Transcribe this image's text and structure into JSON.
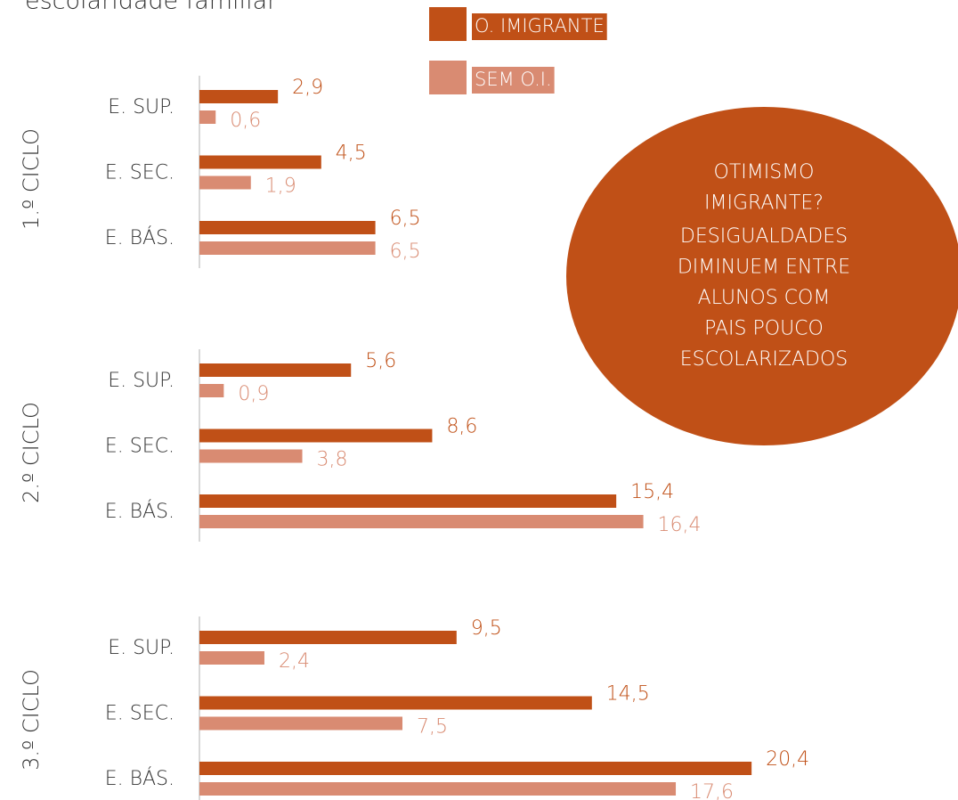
{
  "title": "escolaridade familiar",
  "annotation": {
    "lines": [
      "OTIMISMO",
      "IMIGRANTE?",
      "DESIGUALDADES",
      "DIMINUEM ENTRE",
      "ALUNOS COM",
      "PAIS POUCO",
      "ESCOLARIZADOS"
    ]
  },
  "chart_data": [
    {
      "type": "bar",
      "title": "1.º CICLO",
      "categories": [
        "E. SUP.",
        "E. SEC.",
        "E. BÁS."
      ],
      "series": [
        {
          "name": "O. IMIGRANTE",
          "color": "#c05017",
          "values": [
            2.9,
            4.5,
            6.5
          ],
          "value_labels": [
            "2,9",
            "4,5",
            "6,5"
          ]
        },
        {
          "name": "SEM O.I.",
          "color": "#d98b72",
          "values": [
            0.6,
            1.9,
            6.5
          ],
          "value_labels": [
            "0,6",
            "1,9",
            "6,5"
          ]
        }
      ]
    },
    {
      "type": "bar",
      "title": "2.º CICLO",
      "categories": [
        "E. SUP.",
        "E. SEC.",
        "E. BÁS."
      ],
      "series": [
        {
          "name": "O. IMIGRANTE",
          "color": "#c05017",
          "values": [
            5.6,
            8.6,
            15.4
          ],
          "value_labels": [
            "5,6",
            "8,6",
            "15,4"
          ]
        },
        {
          "name": "SEM O.I.",
          "color": "#d98b72",
          "values": [
            0.9,
            3.8,
            16.4
          ],
          "value_labels": [
            "0,9",
            "3,8",
            "16,4"
          ]
        }
      ]
    },
    {
      "type": "bar",
      "title": "3.º CICLO",
      "categories": [
        "E. SUP.",
        "E. SEC.",
        "E. BÁS."
      ],
      "series": [
        {
          "name": "O. IMIGRANTE",
          "color": "#c05017",
          "values": [
            9.5,
            14.5,
            20.4
          ],
          "value_labels": [
            "9,5",
            "14,5",
            "20,4"
          ]
        },
        {
          "name": "SEM O.I.",
          "color": "#d98b72",
          "values": [
            2.4,
            7.5,
            17.6
          ],
          "value_labels": [
            "2,4",
            "7,5",
            "17,6"
          ]
        }
      ]
    }
  ]
}
